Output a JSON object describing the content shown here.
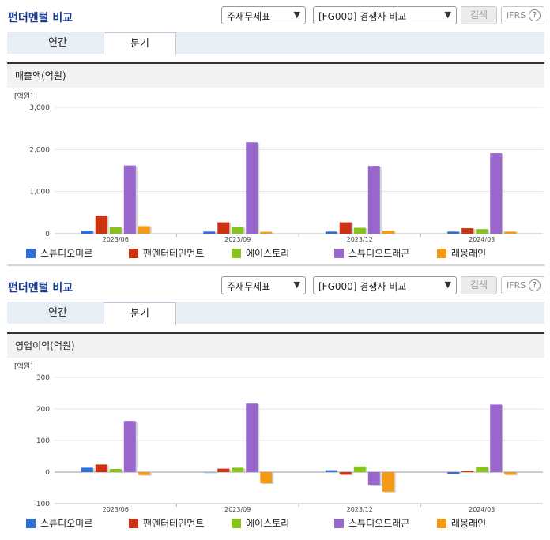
{
  "panels": [
    {
      "title": "펀더멘털 비교",
      "select_type": "주재무제표",
      "select_compare": "[FG000] 경쟁사 비교",
      "search_label": "검색",
      "ifrs_label": "IFRS",
      "help_glyph": "?",
      "tabs": [
        {
          "label": "연간"
        },
        {
          "label": "분기"
        }
      ],
      "subtitle": "매출액(억원)",
      "unit": "[억원]"
    },
    {
      "title": "펀더멘털 비교",
      "select_type": "주재무제표",
      "select_compare": "[FG000] 경쟁사 비교",
      "search_label": "검색",
      "ifrs_label": "IFRS",
      "help_glyph": "?",
      "tabs": [
        {
          "label": "연간"
        },
        {
          "label": "분기"
        }
      ],
      "subtitle": "영업이익(억원)",
      "unit": "[억원]"
    }
  ],
  "colors": [
    "#2f6fd6",
    "#cc3311",
    "#88c21c",
    "#9966cc",
    "#f49a16"
  ],
  "chart_data": [
    {
      "type": "bar",
      "title": "매출액(억원)",
      "ylabel": "[억원]",
      "categories": [
        "2023/06",
        "2023/09",
        "2023/12",
        "2024/03"
      ],
      "ylim": [
        0,
        3000
      ],
      "yticks": [
        0,
        1000,
        2000,
        3000
      ],
      "ytick_labels": [
        "0",
        "1,000",
        "2,000",
        "3,000"
      ],
      "series": [
        {
          "name": "스튜디오미르",
          "values": [
            70,
            50,
            50,
            50
          ]
        },
        {
          "name": "팬엔터테인먼트",
          "values": [
            430,
            270,
            270,
            130
          ]
        },
        {
          "name": "에이스토리",
          "values": [
            150,
            160,
            140,
            110
          ]
        },
        {
          "name": "스튜디오드래곤",
          "values": [
            1620,
            2170,
            1610,
            1910
          ]
        },
        {
          "name": "래몽래인",
          "values": [
            180,
            45,
            70,
            50
          ]
        }
      ]
    },
    {
      "type": "bar",
      "title": "영업이익(억원)",
      "ylabel": "[억원]",
      "categories": [
        "2023/06",
        "2023/09",
        "2023/12",
        "2024/03"
      ],
      "ylim": [
        -100,
        300
      ],
      "yticks": [
        -100,
        0,
        100,
        200,
        300
      ],
      "ytick_labels": [
        "-100",
        "0",
        "100",
        "200",
        "300"
      ],
      "series": [
        {
          "name": "스튜디오미르",
          "values": [
            14,
            0,
            6,
            -5
          ]
        },
        {
          "name": "팬엔터테인먼트",
          "values": [
            24,
            11,
            -8,
            4
          ]
        },
        {
          "name": "에이스토리",
          "values": [
            10,
            14,
            18,
            16
          ]
        },
        {
          "name": "스튜디오드래곤",
          "values": [
            162,
            217,
            -40,
            214
          ]
        },
        {
          "name": "래몽래인",
          "values": [
            -9,
            -35,
            -62,
            -8
          ]
        }
      ]
    }
  ]
}
